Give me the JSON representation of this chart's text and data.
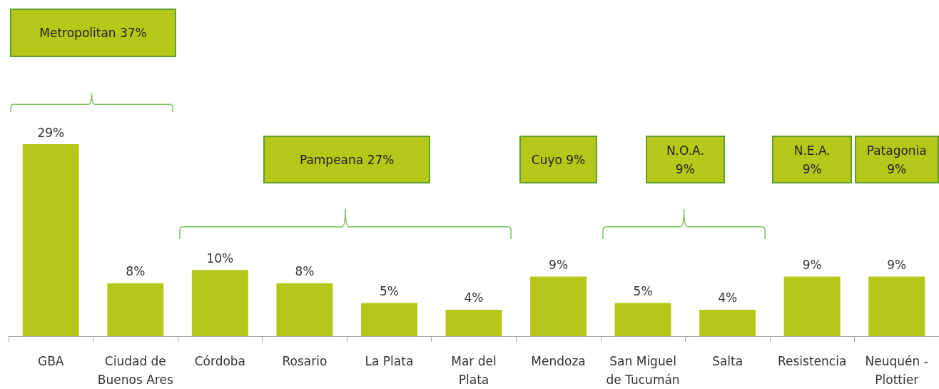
{
  "chart_data": {
    "type": "bar",
    "categories": [
      "GBA",
      "Ciudad de Buenos Ares",
      "Córdoba",
      "Rosario",
      "La Plata",
      "Mar del Plata",
      "Mendoza",
      "San Miguel de Tucumán",
      "Salta",
      "Resistencia",
      "Neuquén - Plottier"
    ],
    "values": [
      29,
      8,
      10,
      8,
      5,
      4,
      9,
      5,
      4,
      9,
      9
    ],
    "value_labels": [
      "29%",
      "8%",
      "10%",
      "8%",
      "5%",
      "4%",
      "9%",
      "5%",
      "4%",
      "9%",
      "9%"
    ],
    "color": "#b5c81a",
    "grid": false,
    "annotations": [
      "Metropolitan 37%",
      "Pampeana 27%",
      "Cuyo 9%",
      "N.O.A. 9%",
      "N.E.A. 9%",
      "Patagonia 9%"
    ]
  }
}
